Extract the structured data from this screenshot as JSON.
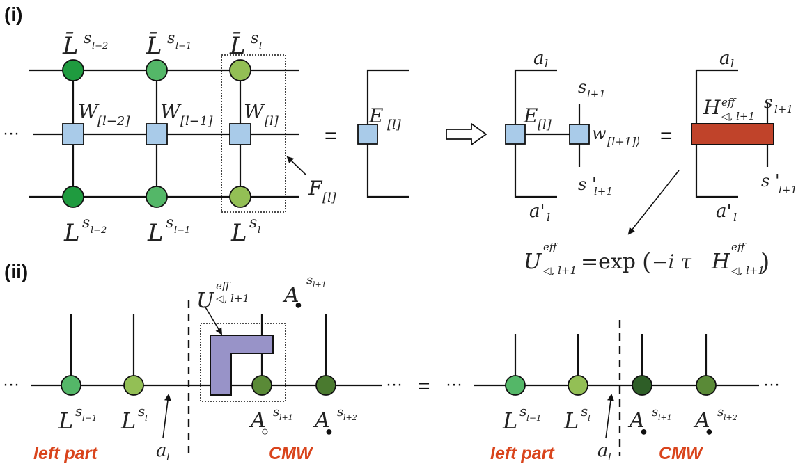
{
  "panel_labels": {
    "i": "(i)",
    "ii": "(ii)"
  },
  "ellipsis": "···",
  "equals": "=",
  "colors": {
    "tensor_dark": "#1f9b3f",
    "tensor_mid": "#54b768",
    "tensor_light": "#93bf55",
    "tensor_olive": "#5a8a37",
    "tensor_darkest": "#2e5e27",
    "mpo_box": "#a9cbe9",
    "heff_block": "#c0432a",
    "ueff_block": "#9893c8",
    "accent_red": "#d9441c"
  },
  "panel_i": {
    "top_row": [
      {
        "base": "L̄",
        "sub": "s",
        "subsub": "l−2"
      },
      {
        "base": "L̄",
        "sub": "s",
        "subsub": "l−1"
      },
      {
        "base": "L̄",
        "sub": "s",
        "subsub": "l"
      }
    ],
    "mpo_row": [
      {
        "base": "W",
        "sub": "[l−2]"
      },
      {
        "base": "W",
        "sub": "[l−1]"
      },
      {
        "base": "W",
        "sub": "[l]"
      }
    ],
    "bottom_row": [
      {
        "base": "L",
        "sub": "s",
        "subsub": "l−2"
      },
      {
        "base": "L",
        "sub": "s",
        "subsub": "l−1"
      },
      {
        "base": "L",
        "sub": "s",
        "subsub": "l"
      }
    ],
    "F_label": {
      "base": "F",
      "sub": "[l]"
    },
    "E_label": {
      "base": "E",
      "sub": "[l]"
    },
    "right": {
      "a_top": {
        "base": "a",
        "sub": "l"
      },
      "a_bottom": {
        "base": "a'",
        "sub": "l"
      },
      "E_label": {
        "base": "E",
        "sub": "[l]"
      },
      "w_label": {
        "base": "w",
        "sub": "[l+1]⟩"
      },
      "s_top": {
        "base": "s",
        "sub": "l+1"
      },
      "s_bottom": {
        "base": "s '",
        "sub": "l+1"
      },
      "H_label": {
        "base": "H",
        "sup": "eff",
        "sub": "◁, l+1"
      },
      "H_a_top": {
        "base": "a",
        "sub": "l"
      },
      "H_a_bottom": {
        "base": "a'",
        "sub": "l"
      },
      "H_s_top": {
        "base": "s",
        "sub": "l+1"
      },
      "H_s_bottom": {
        "base": "s '",
        "sub": "l+1"
      }
    },
    "equation": {
      "lhs_base": "U",
      "lhs_sup": "eff",
      "lhs_sub": "◁, l+1",
      "middle": "=exp",
      "paren_open": "(",
      "minus_i_tau": "−i τ",
      "rhs_base": "H",
      "rhs_sup": "eff",
      "rhs_sub": "◁, l+1",
      "paren_close": ")"
    }
  },
  "panel_ii": {
    "left": {
      "tensors": [
        {
          "base": "L",
          "sub": "s",
          "subsub": "l−1"
        },
        {
          "base": "L",
          "sub": "s",
          "subsub": "l"
        },
        {
          "base": "A",
          "mark": "○",
          "sub": "s",
          "subsub": "l+1"
        },
        {
          "base": "A",
          "mark": "●",
          "sub": "s",
          "subsub": "l+2"
        }
      ],
      "U_label": {
        "base": "U",
        "sup": "eff",
        "sub": "◁, l+1"
      },
      "A_top": {
        "base": "A",
        "mark": "●",
        "sub": "s",
        "subsub": "l+1"
      },
      "a_label": {
        "base": "a",
        "sub": "l"
      },
      "left_part": "left  part",
      "cmw": "CMW"
    },
    "right": {
      "tensors": [
        {
          "base": "L",
          "sub": "s",
          "subsub": "l−1"
        },
        {
          "base": "L",
          "sub": "s",
          "subsub": "l"
        },
        {
          "base": "A",
          "mark": "●",
          "sub": "s",
          "subsub": "l+1"
        },
        {
          "base": "A",
          "mark": "●",
          "sub": "s",
          "subsub": "l+2"
        }
      ],
      "a_label": {
        "base": "a",
        "sub": "l"
      },
      "left_part": "left  part",
      "cmw": "CMW"
    }
  }
}
